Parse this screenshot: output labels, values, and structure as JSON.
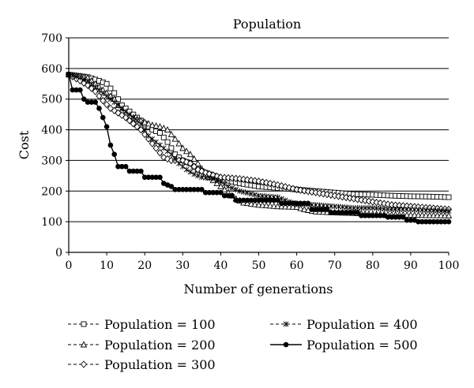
{
  "chart_data": {
    "type": "line",
    "title": "Population",
    "xlabel": "Number of generations",
    "ylabel": "Cost",
    "xlim": [
      0,
      100
    ],
    "ylim": [
      0,
      700
    ],
    "xticks": [
      0,
      10,
      20,
      30,
      40,
      50,
      60,
      70,
      80,
      90,
      100
    ],
    "yticks": [
      0,
      100,
      200,
      300,
      400,
      500,
      600,
      700
    ],
    "grid": "horizontal",
    "legend_position": "bottom",
    "series": [
      {
        "name": "Population = 100",
        "marker": "square",
        "dash": "dashed",
        "points": [
          [
            0,
            580
          ],
          [
            3,
            575
          ],
          [
            5,
            572
          ],
          [
            8,
            560
          ],
          [
            10,
            550
          ],
          [
            12,
            520
          ],
          [
            14,
            480
          ],
          [
            16,
            460
          ],
          [
            18,
            440
          ],
          [
            20,
            420
          ],
          [
            22,
            400
          ],
          [
            24,
            390
          ],
          [
            26,
            360
          ],
          [
            28,
            320
          ],
          [
            30,
            300
          ],
          [
            32,
            290
          ],
          [
            34,
            270
          ],
          [
            36,
            260
          ],
          [
            38,
            250
          ],
          [
            40,
            240
          ],
          [
            45,
            225
          ],
          [
            50,
            215
          ],
          [
            55,
            210
          ],
          [
            60,
            205
          ],
          [
            65,
            200
          ],
          [
            70,
            195
          ],
          [
            75,
            190
          ],
          [
            80,
            188
          ],
          [
            85,
            185
          ],
          [
            90,
            183
          ],
          [
            95,
            182
          ],
          [
            100,
            180
          ]
        ]
      },
      {
        "name": "Population = 200",
        "marker": "triangle",
        "dash": "dashed",
        "points": [
          [
            0,
            580
          ],
          [
            3,
            575
          ],
          [
            5,
            570
          ],
          [
            8,
            540
          ],
          [
            10,
            520
          ],
          [
            12,
            500
          ],
          [
            14,
            460
          ],
          [
            16,
            445
          ],
          [
            18,
            435
          ],
          [
            20,
            425
          ],
          [
            22,
            415
          ],
          [
            24,
            410
          ],
          [
            26,
            400
          ],
          [
            28,
            370
          ],
          [
            30,
            340
          ],
          [
            32,
            320
          ],
          [
            34,
            290
          ],
          [
            36,
            255
          ],
          [
            38,
            235
          ],
          [
            40,
            215
          ],
          [
            42,
            195
          ],
          [
            44,
            175
          ],
          [
            46,
            162
          ],
          [
            50,
            155
          ],
          [
            55,
            150
          ],
          [
            60,
            148
          ],
          [
            62,
            140
          ],
          [
            65,
            133
          ],
          [
            70,
            130
          ],
          [
            75,
            128
          ],
          [
            80,
            125
          ],
          [
            85,
            123
          ],
          [
            90,
            122
          ],
          [
            95,
            121
          ],
          [
            100,
            120
          ]
        ]
      },
      {
        "name": "Population = 300",
        "marker": "diamond",
        "dash": "dashed",
        "points": [
          [
            0,
            580
          ],
          [
            3,
            560
          ],
          [
            5,
            545
          ],
          [
            7,
            525
          ],
          [
            9,
            495
          ],
          [
            11,
            470
          ],
          [
            13,
            455
          ],
          [
            15,
            440
          ],
          [
            17,
            420
          ],
          [
            19,
            400
          ],
          [
            21,
            370
          ],
          [
            23,
            340
          ],
          [
            25,
            310
          ],
          [
            27,
            300
          ],
          [
            30,
            300
          ],
          [
            32,
            290
          ],
          [
            34,
            270
          ],
          [
            36,
            260
          ],
          [
            38,
            252
          ],
          [
            40,
            245
          ],
          [
            45,
            240
          ],
          [
            50,
            232
          ],
          [
            55,
            220
          ],
          [
            60,
            205
          ],
          [
            65,
            195
          ],
          [
            70,
            185
          ],
          [
            75,
            175
          ],
          [
            80,
            165
          ],
          [
            85,
            155
          ],
          [
            90,
            150
          ],
          [
            95,
            145
          ],
          [
            100,
            140
          ]
        ]
      },
      {
        "name": "Population = 400",
        "marker": "star",
        "dash": "dashed",
        "points": [
          [
            0,
            580
          ],
          [
            3,
            570
          ],
          [
            5,
            560
          ],
          [
            7,
            540
          ],
          [
            9,
            520
          ],
          [
            11,
            500
          ],
          [
            13,
            480
          ],
          [
            15,
            460
          ],
          [
            17,
            440
          ],
          [
            19,
            420
          ],
          [
            21,
            380
          ],
          [
            23,
            360
          ],
          [
            25,
            340
          ],
          [
            27,
            320
          ],
          [
            29,
            290
          ],
          [
            31,
            270
          ],
          [
            33,
            255
          ],
          [
            35,
            245
          ],
          [
            38,
            240
          ],
          [
            40,
            230
          ],
          [
            42,
            215
          ],
          [
            45,
            200
          ],
          [
            50,
            185
          ],
          [
            55,
            180
          ],
          [
            58,
            165
          ],
          [
            60,
            158
          ],
          [
            65,
            155
          ],
          [
            70,
            150
          ],
          [
            75,
            145
          ],
          [
            80,
            145
          ],
          [
            85,
            140
          ],
          [
            90,
            140
          ],
          [
            95,
            137
          ],
          [
            100,
            135
          ]
        ]
      },
      {
        "name": "Population = 500",
        "marker": "circle",
        "dash": "solid",
        "points": [
          [
            0,
            580
          ],
          [
            1,
            530
          ],
          [
            3,
            530
          ],
          [
            4,
            500
          ],
          [
            5,
            490
          ],
          [
            7,
            490
          ],
          [
            8,
            470
          ],
          [
            9,
            440
          ],
          [
            10,
            410
          ],
          [
            11,
            350
          ],
          [
            12,
            320
          ],
          [
            13,
            280
          ],
          [
            15,
            280
          ],
          [
            16,
            265
          ],
          [
            19,
            265
          ],
          [
            20,
            245
          ],
          [
            24,
            245
          ],
          [
            25,
            225
          ],
          [
            27,
            215
          ],
          [
            28,
            205
          ],
          [
            35,
            205
          ],
          [
            36,
            195
          ],
          [
            40,
            195
          ],
          [
            41,
            185
          ],
          [
            43,
            185
          ],
          [
            44,
            170
          ],
          [
            55,
            170
          ],
          [
            56,
            160
          ],
          [
            63,
            160
          ],
          [
            64,
            140
          ],
          [
            68,
            140
          ],
          [
            69,
            130
          ],
          [
            76,
            130
          ],
          [
            77,
            120
          ],
          [
            83,
            120
          ],
          [
            84,
            115
          ],
          [
            88,
            115
          ],
          [
            89,
            105
          ],
          [
            91,
            105
          ],
          [
            92,
            100
          ],
          [
            100,
            100
          ]
        ]
      }
    ]
  }
}
